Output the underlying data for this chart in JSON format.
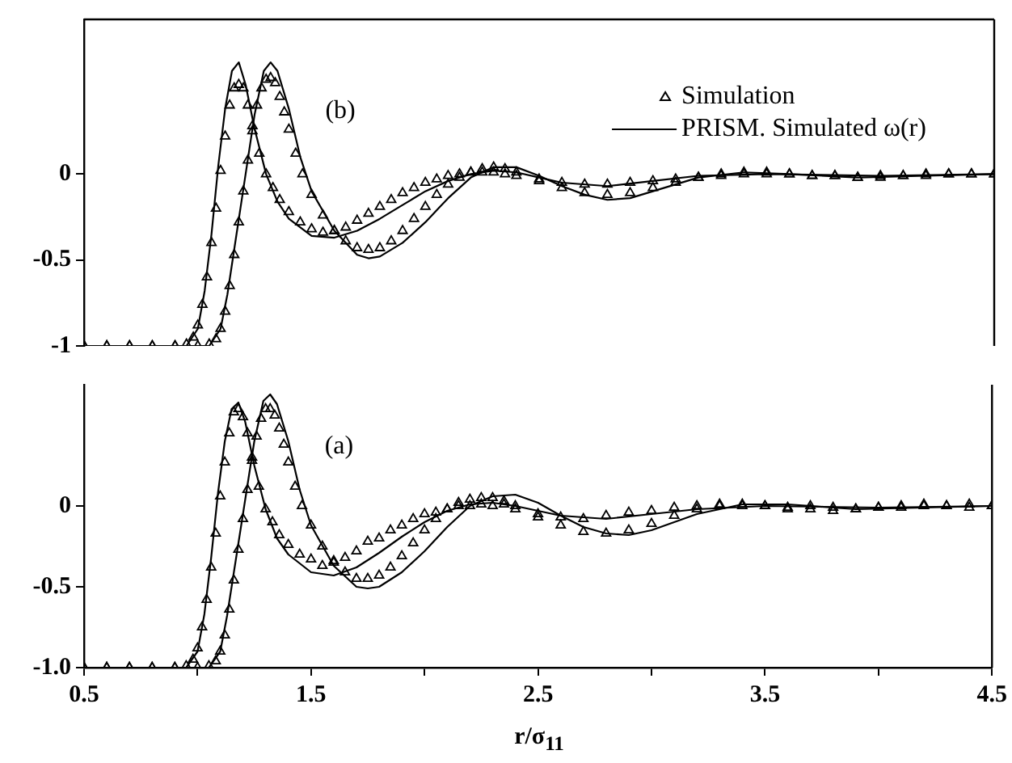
{
  "chart_data": [
    {
      "type": "line",
      "annotations": [
        "(b)"
      ],
      "legend": "top right",
      "tick_labels": "y",
      "xlim": [
        0.5,
        4.5
      ],
      "ylim": [
        -1,
        0.9
      ],
      "yticks": [
        -1,
        -0.5,
        0
      ],
      "series": [
        {
          "name": "Simulation",
          "type": "scatter",
          "marker": "triangle",
          "color": "#000000",
          "x": [
            0.5,
            0.6,
            0.7,
            0.8,
            0.9,
            0.95,
            0.98,
            1.0,
            1.02,
            1.04,
            1.06,
            1.08,
            1.1,
            1.12,
            1.14,
            1.16,
            1.18,
            1.2,
            1.22,
            1.24,
            1.27,
            1.3,
            1.33,
            1.36,
            1.4,
            1.45,
            1.5,
            1.55,
            1.6,
            1.65,
            1.7,
            1.75,
            1.8,
            1.85,
            1.9,
            1.95,
            2.0,
            2.05,
            2.1,
            2.15,
            2.2,
            2.25,
            2.3,
            2.35,
            2.4,
            2.5,
            2.6,
            2.7,
            2.8,
            2.9,
            3.0,
            3.1,
            3.2,
            3.3,
            3.4,
            3.5,
            3.6,
            3.7,
            3.8,
            3.9,
            4.0,
            4.1,
            4.2,
            4.3,
            4.4,
            4.5
          ],
          "values": [
            -1,
            -1,
            -1,
            -1,
            -1,
            -0.99,
            -0.95,
            -0.88,
            -0.76,
            -0.6,
            -0.4,
            -0.2,
            0.02,
            0.22,
            0.4,
            0.5,
            0.52,
            0.5,
            0.4,
            0.28,
            0.12,
            0.0,
            -0.08,
            -0.15,
            -0.22,
            -0.28,
            -0.32,
            -0.34,
            -0.33,
            -0.31,
            -0.27,
            -0.23,
            -0.19,
            -0.15,
            -0.11,
            -0.08,
            -0.05,
            -0.03,
            -0.01,
            0.0,
            0.01,
            0.01,
            0.01,
            0.0,
            -0.01,
            -0.03,
            -0.05,
            -0.06,
            -0.06,
            -0.05,
            -0.04,
            -0.03,
            -0.02,
            -0.01,
            0.0,
            0.0,
            0.0,
            -0.01,
            -0.01,
            -0.02,
            -0.01,
            -0.01,
            0.0,
            0.0,
            0.0,
            0.0
          ]
        },
        {
          "name": "PRISM. Simulated ω(r)",
          "marker": "none",
          "color": "#000000",
          "x": [
            0.5,
            0.95,
            1.0,
            1.03,
            1.06,
            1.09,
            1.12,
            1.15,
            1.18,
            1.21,
            1.25,
            1.3,
            1.35,
            1.4,
            1.5,
            1.6,
            1.7,
            1.8,
            1.9,
            2.0,
            2.1,
            2.2,
            2.3,
            2.4,
            2.5,
            2.6,
            2.8,
            3.0,
            3.2,
            3.5,
            4.0,
            4.5
          ],
          "values": [
            -1,
            -1,
            -0.9,
            -0.68,
            -0.35,
            0.05,
            0.38,
            0.6,
            0.65,
            0.52,
            0.26,
            0.0,
            -0.16,
            -0.26,
            -0.36,
            -0.37,
            -0.33,
            -0.26,
            -0.18,
            -0.1,
            -0.04,
            0.0,
            0.02,
            0.01,
            -0.02,
            -0.05,
            -0.07,
            -0.04,
            -0.01,
            0.0,
            -0.01,
            0.0
          ]
        },
        {
          "type": "scatter",
          "marker": "triangle",
          "color": "#000000",
          "x": [
            0.5,
            0.6,
            0.7,
            0.8,
            0.9,
            1.0,
            1.05,
            1.08,
            1.1,
            1.12,
            1.14,
            1.16,
            1.18,
            1.2,
            1.22,
            1.24,
            1.26,
            1.28,
            1.3,
            1.32,
            1.34,
            1.36,
            1.38,
            1.4,
            1.43,
            1.46,
            1.5,
            1.55,
            1.6,
            1.65,
            1.7,
            1.75,
            1.8,
            1.85,
            1.9,
            1.95,
            2.0,
            2.05,
            2.1,
            2.15,
            2.2,
            2.25,
            2.3,
            2.35,
            2.4,
            2.5,
            2.6,
            2.7,
            2.8,
            2.9,
            3.0,
            3.1,
            3.2,
            3.3,
            3.4,
            3.5,
            3.6,
            3.7,
            3.8,
            3.9,
            4.0,
            4.1,
            4.2,
            4.3,
            4.4,
            4.5
          ],
          "values": [
            -1,
            -1,
            -1,
            -1,
            -1,
            -1,
            -0.99,
            -0.96,
            -0.9,
            -0.8,
            -0.65,
            -0.47,
            -0.28,
            -0.1,
            0.08,
            0.25,
            0.4,
            0.5,
            0.55,
            0.56,
            0.53,
            0.45,
            0.36,
            0.26,
            0.12,
            0.0,
            -0.12,
            -0.24,
            -0.33,
            -0.39,
            -0.43,
            -0.44,
            -0.43,
            -0.39,
            -0.33,
            -0.26,
            -0.19,
            -0.12,
            -0.06,
            -0.02,
            0.01,
            0.03,
            0.04,
            0.03,
            0.01,
            -0.04,
            -0.08,
            -0.11,
            -0.12,
            -0.11,
            -0.08,
            -0.05,
            -0.02,
            0.0,
            0.01,
            0.01,
            0.0,
            -0.01,
            -0.01,
            -0.02,
            -0.02,
            -0.01,
            -0.01,
            0.0,
            0.0,
            0.0
          ]
        },
        {
          "marker": "none",
          "color": "#000000",
          "x": [
            0.5,
            1.05,
            1.1,
            1.13,
            1.17,
            1.21,
            1.25,
            1.29,
            1.32,
            1.35,
            1.4,
            1.45,
            1.5,
            1.6,
            1.7,
            1.75,
            1.8,
            1.9,
            2.0,
            2.1,
            2.2,
            2.3,
            2.4,
            2.5,
            2.6,
            2.7,
            2.8,
            2.9,
            3.0,
            3.2,
            3.4,
            3.6,
            3.9,
            4.2,
            4.5
          ],
          "values": [
            -1,
            -1,
            -0.9,
            -0.7,
            -0.35,
            0.0,
            0.35,
            0.6,
            0.65,
            0.6,
            0.38,
            0.1,
            -0.1,
            -0.33,
            -0.47,
            -0.49,
            -0.48,
            -0.4,
            -0.28,
            -0.14,
            -0.02,
            0.04,
            0.04,
            -0.01,
            -0.07,
            -0.12,
            -0.15,
            -0.14,
            -0.1,
            -0.02,
            0.01,
            0.0,
            -0.02,
            -0.01,
            0.0
          ]
        }
      ]
    },
    {
      "type": "line",
      "annotations": [
        "(a)"
      ],
      "xlabel": "r/σ$_{11}$",
      "xlim": [
        0.5,
        4.5
      ],
      "xticks": [
        0.5,
        {
          "value": 1,
          "label": null
        },
        1.5,
        {
          "value": 2,
          "label": null
        },
        2.5,
        {
          "value": 3,
          "label": null
        },
        3.5,
        {
          "value": 4,
          "label": null
        },
        4.5
      ],
      "ylim": [
        -1,
        0.75
      ],
      "yticks": [
        {
          "value": -1,
          "label": "-1.0"
        },
        -0.5,
        0
      ],
      "series": [
        {
          "type": "scatter",
          "marker": "triangle",
          "color": "#000000",
          "x": [
            0.5,
            0.6,
            0.7,
            0.8,
            0.9,
            0.95,
            0.98,
            1.0,
            1.02,
            1.04,
            1.06,
            1.08,
            1.1,
            1.12,
            1.14,
            1.16,
            1.18,
            1.2,
            1.22,
            1.24,
            1.27,
            1.3,
            1.33,
            1.36,
            1.4,
            1.45,
            1.5,
            1.55,
            1.6,
            1.65,
            1.7,
            1.75,
            1.8,
            1.85,
            1.9,
            1.95,
            2.0,
            2.05,
            2.1,
            2.15,
            2.2,
            2.25,
            2.3,
            2.35,
            2.4,
            2.5,
            2.6,
            2.7,
            2.8,
            2.9,
            3.0,
            3.1,
            3.2,
            3.3,
            3.4,
            3.5,
            3.6,
            3.7,
            3.8,
            3.9,
            4.0,
            4.1,
            4.2,
            4.3,
            4.4,
            4.5
          ],
          "values": [
            -1,
            -1,
            -1,
            -1,
            -1,
            -0.99,
            -0.95,
            -0.88,
            -0.75,
            -0.58,
            -0.38,
            -0.17,
            0.06,
            0.27,
            0.45,
            0.58,
            0.6,
            0.55,
            0.45,
            0.3,
            0.12,
            -0.02,
            -0.1,
            -0.18,
            -0.24,
            -0.3,
            -0.33,
            -0.37,
            -0.34,
            -0.32,
            -0.28,
            -0.22,
            -0.2,
            -0.15,
            -0.12,
            -0.08,
            -0.05,
            -0.04,
            -0.02,
            0.0,
            0.0,
            0.01,
            0.0,
            0.01,
            -0.02,
            -0.05,
            -0.07,
            -0.08,
            -0.06,
            -0.04,
            -0.03,
            -0.01,
            0.0,
            0.01,
            0.0,
            0.0,
            -0.02,
            0.0,
            -0.01,
            -0.02,
            -0.01,
            0.0,
            0.01,
            0.0,
            0.01,
            0.0
          ]
        },
        {
          "marker": "none",
          "color": "#000000",
          "x": [
            0.5,
            0.95,
            1.0,
            1.03,
            1.06,
            1.09,
            1.12,
            1.15,
            1.18,
            1.21,
            1.25,
            1.3,
            1.35,
            1.4,
            1.5,
            1.6,
            1.7,
            1.8,
            1.9,
            2.0,
            2.1,
            2.2,
            2.3,
            2.4,
            2.5,
            2.6,
            2.8,
            3.0,
            3.2,
            3.5,
            4.0,
            4.5
          ],
          "values": [
            -1,
            -1,
            -0.9,
            -0.67,
            -0.32,
            0.08,
            0.4,
            0.6,
            0.64,
            0.52,
            0.25,
            -0.02,
            -0.2,
            -0.3,
            -0.41,
            -0.43,
            -0.38,
            -0.29,
            -0.19,
            -0.1,
            -0.03,
            0.01,
            0.02,
            0.0,
            -0.03,
            -0.06,
            -0.08,
            -0.05,
            -0.02,
            0.0,
            -0.01,
            0.0
          ]
        },
        {
          "type": "scatter",
          "marker": "triangle",
          "color": "#000000",
          "x": [
            0.5,
            0.6,
            0.7,
            0.8,
            0.9,
            1.0,
            1.05,
            1.08,
            1.1,
            1.12,
            1.14,
            1.16,
            1.18,
            1.2,
            1.22,
            1.24,
            1.26,
            1.28,
            1.3,
            1.32,
            1.34,
            1.36,
            1.38,
            1.4,
            1.43,
            1.46,
            1.5,
            1.55,
            1.6,
            1.65,
            1.7,
            1.75,
            1.8,
            1.85,
            1.9,
            1.95,
            2.0,
            2.05,
            2.1,
            2.15,
            2.2,
            2.25,
            2.3,
            2.35,
            2.4,
            2.5,
            2.6,
            2.7,
            2.8,
            2.9,
            3.0,
            3.1,
            3.2,
            3.3,
            3.4,
            3.5,
            3.6,
            3.7,
            3.8,
            3.9,
            4.0,
            4.1,
            4.2,
            4.3,
            4.4,
            4.5
          ],
          "values": [
            -1,
            -1,
            -1,
            -1,
            -1,
            -1,
            -0.99,
            -0.96,
            -0.9,
            -0.8,
            -0.64,
            -0.46,
            -0.27,
            -0.08,
            0.1,
            0.28,
            0.43,
            0.54,
            0.6,
            0.6,
            0.56,
            0.48,
            0.38,
            0.27,
            0.12,
            0.0,
            -0.12,
            -0.25,
            -0.35,
            -0.41,
            -0.45,
            -0.45,
            -0.43,
            -0.38,
            -0.31,
            -0.23,
            -0.15,
            -0.08,
            -0.02,
            0.02,
            0.04,
            0.05,
            0.05,
            0.03,
            0.0,
            -0.07,
            -0.12,
            -0.16,
            -0.17,
            -0.15,
            -0.11,
            -0.06,
            -0.02,
            0.0,
            0.01,
            0.0,
            -0.01,
            -0.02,
            -0.03,
            -0.02,
            -0.01,
            -0.01,
            0.0,
            0.0,
            -0.01,
            0.0
          ]
        },
        {
          "marker": "none",
          "color": "#000000",
          "x": [
            0.5,
            1.05,
            1.1,
            1.13,
            1.17,
            1.21,
            1.25,
            1.29,
            1.32,
            1.35,
            1.4,
            1.45,
            1.5,
            1.6,
            1.7,
            1.75,
            1.8,
            1.9,
            2.0,
            2.1,
            2.2,
            2.3,
            2.4,
            2.5,
            2.6,
            2.7,
            2.8,
            2.9,
            3.0,
            3.2,
            3.4,
            3.6,
            3.9,
            4.2,
            4.5
          ],
          "values": [
            -1,
            -1,
            -0.9,
            -0.68,
            -0.32,
            0.04,
            0.4,
            0.65,
            0.69,
            0.63,
            0.4,
            0.1,
            -0.12,
            -0.37,
            -0.5,
            -0.51,
            -0.5,
            -0.41,
            -0.28,
            -0.13,
            0.0,
            0.06,
            0.07,
            0.02,
            -0.06,
            -0.13,
            -0.17,
            -0.18,
            -0.15,
            -0.05,
            0.01,
            0.01,
            -0.02,
            -0.01,
            0.0
          ]
        }
      ]
    }
  ]
}
